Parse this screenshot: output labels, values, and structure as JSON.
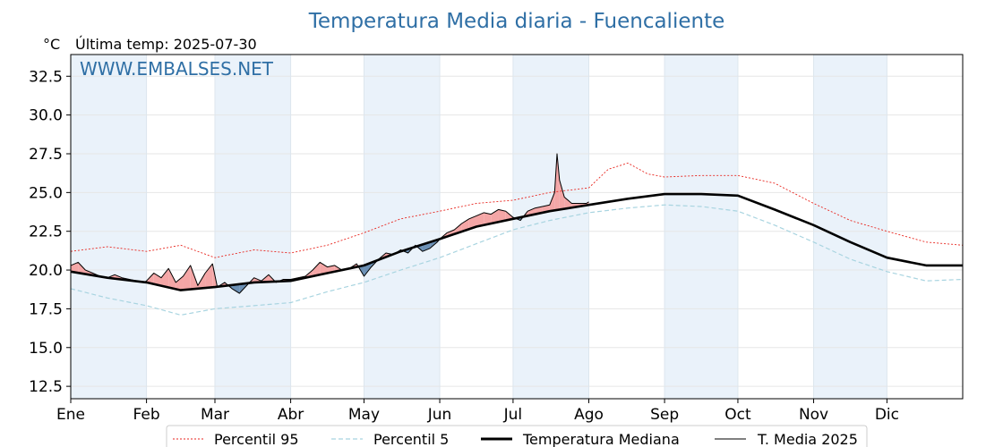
{
  "chart_data": {
    "type": "line",
    "title": "Temperatura Media diaria - Fuencaliente",
    "unit": "°C",
    "last_temp_label": "Última temp: 2025-07-30",
    "watermark": "WWW.EMBALSES.NET",
    "ylim": [
      11.7,
      33.9
    ],
    "y_ticks": [
      12.5,
      15.0,
      17.5,
      20.0,
      22.5,
      25.0,
      27.5,
      30.0,
      32.5
    ],
    "y_tick_labels": [
      "12.5",
      "15.0",
      "17.5",
      "20.0",
      "22.5",
      "25.0",
      "27.5",
      "30.0",
      "32.5"
    ],
    "xlim": [
      0,
      365
    ],
    "x_ticks": [
      0,
      31,
      59,
      90,
      120,
      151,
      181,
      212,
      243,
      273,
      304,
      334
    ],
    "x_tick_labels": [
      "Ene",
      "Feb",
      "Mar",
      "Abr",
      "May",
      "Jun",
      "Jul",
      "Ago",
      "Sep",
      "Oct",
      "Nov",
      "Dic"
    ],
    "grid": true,
    "legend_position": "bottom",
    "colors": {
      "p95": "#e8261f",
      "p5": "#a8d4e0",
      "mediana": "#000000",
      "media2025": "#000000",
      "above": "#f4a6a6",
      "below": "#6b90b5",
      "band": "#eaf2fa",
      "title": "#2f6fa5"
    },
    "series": [
      {
        "name": "Percentil 95",
        "key": "p95",
        "style": "dotted",
        "points": [
          [
            0,
            21.2
          ],
          [
            15,
            21.5
          ],
          [
            31,
            21.2
          ],
          [
            45,
            21.6
          ],
          [
            59,
            20.8
          ],
          [
            75,
            21.3
          ],
          [
            90,
            21.1
          ],
          [
            105,
            21.6
          ],
          [
            120,
            22.4
          ],
          [
            135,
            23.3
          ],
          [
            151,
            23.8
          ],
          [
            166,
            24.3
          ],
          [
            181,
            24.5
          ],
          [
            196,
            25.0
          ],
          [
            212,
            25.3
          ],
          [
            220,
            26.5
          ],
          [
            228,
            26.9
          ],
          [
            236,
            26.2
          ],
          [
            243,
            26.0
          ],
          [
            258,
            26.1
          ],
          [
            273,
            26.1
          ],
          [
            288,
            25.6
          ],
          [
            304,
            24.3
          ],
          [
            319,
            23.2
          ],
          [
            334,
            22.5
          ],
          [
            350,
            21.8
          ],
          [
            365,
            21.6
          ]
        ]
      },
      {
        "name": "Percentil 5",
        "key": "p5",
        "style": "dashed",
        "points": [
          [
            0,
            18.8
          ],
          [
            15,
            18.2
          ],
          [
            31,
            17.7
          ],
          [
            45,
            17.1
          ],
          [
            59,
            17.5
          ],
          [
            75,
            17.7
          ],
          [
            90,
            17.9
          ],
          [
            105,
            18.6
          ],
          [
            120,
            19.2
          ],
          [
            135,
            20.0
          ],
          [
            151,
            20.8
          ],
          [
            166,
            21.7
          ],
          [
            181,
            22.6
          ],
          [
            196,
            23.2
          ],
          [
            212,
            23.7
          ],
          [
            228,
            24.0
          ],
          [
            243,
            24.2
          ],
          [
            258,
            24.1
          ],
          [
            273,
            23.8
          ],
          [
            288,
            22.9
          ],
          [
            304,
            21.8
          ],
          [
            319,
            20.7
          ],
          [
            334,
            19.9
          ],
          [
            350,
            19.3
          ],
          [
            365,
            19.4
          ]
        ]
      },
      {
        "name": "Temperatura Mediana",
        "key": "mediana",
        "style": "solid-thick",
        "points": [
          [
            0,
            19.9
          ],
          [
            15,
            19.5
          ],
          [
            31,
            19.2
          ],
          [
            45,
            18.7
          ],
          [
            59,
            18.9
          ],
          [
            75,
            19.2
          ],
          [
            90,
            19.3
          ],
          [
            105,
            19.8
          ],
          [
            120,
            20.3
          ],
          [
            135,
            21.2
          ],
          [
            151,
            22.0
          ],
          [
            166,
            22.8
          ],
          [
            181,
            23.3
          ],
          [
            196,
            23.8
          ],
          [
            212,
            24.2
          ],
          [
            228,
            24.6
          ],
          [
            243,
            24.9
          ],
          [
            258,
            24.9
          ],
          [
            273,
            24.8
          ],
          [
            288,
            23.9
          ],
          [
            304,
            22.9
          ],
          [
            319,
            21.8
          ],
          [
            334,
            20.8
          ],
          [
            350,
            20.3
          ],
          [
            365,
            20.3
          ]
        ]
      },
      {
        "name": "T. Media 2025",
        "key": "media2025",
        "style": "solid-thin",
        "points": [
          [
            0,
            20.3
          ],
          [
            3,
            20.5
          ],
          [
            6,
            20.0
          ],
          [
            9,
            19.8
          ],
          [
            12,
            19.6
          ],
          [
            15,
            19.5
          ],
          [
            18,
            19.7
          ],
          [
            21,
            19.5
          ],
          [
            24,
            19.4
          ],
          [
            27,
            19.3
          ],
          [
            30,
            19.2
          ],
          [
            31,
            19.3
          ],
          [
            34,
            19.8
          ],
          [
            37,
            19.5
          ],
          [
            40,
            20.1
          ],
          [
            43,
            19.2
          ],
          [
            46,
            19.6
          ],
          [
            49,
            20.3
          ],
          [
            52,
            19.0
          ],
          [
            55,
            19.8
          ],
          [
            58,
            20.4
          ],
          [
            60,
            18.9
          ],
          [
            63,
            19.2
          ],
          [
            66,
            18.8
          ],
          [
            69,
            18.5
          ],
          [
            72,
            19.0
          ],
          [
            75,
            19.5
          ],
          [
            78,
            19.3
          ],
          [
            81,
            19.7
          ],
          [
            84,
            19.2
          ],
          [
            87,
            19.4
          ],
          [
            90,
            19.4
          ],
          [
            93,
            19.5
          ],
          [
            96,
            19.6
          ],
          [
            99,
            20.0
          ],
          [
            102,
            20.5
          ],
          [
            105,
            20.2
          ],
          [
            108,
            20.3
          ],
          [
            111,
            20.0
          ],
          [
            114,
            20.1
          ],
          [
            117,
            20.4
          ],
          [
            120,
            19.6
          ],
          [
            123,
            20.2
          ],
          [
            126,
            20.7
          ],
          [
            129,
            21.1
          ],
          [
            132,
            21.0
          ],
          [
            135,
            21.3
          ],
          [
            138,
            21.1
          ],
          [
            141,
            21.6
          ],
          [
            144,
            21.2
          ],
          [
            147,
            21.4
          ],
          [
            150,
            21.8
          ],
          [
            151,
            22.0
          ],
          [
            154,
            22.4
          ],
          [
            157,
            22.6
          ],
          [
            160,
            23.0
          ],
          [
            163,
            23.3
          ],
          [
            166,
            23.5
          ],
          [
            169,
            23.7
          ],
          [
            172,
            23.6
          ],
          [
            175,
            23.9
          ],
          [
            178,
            23.8
          ],
          [
            181,
            23.4
          ],
          [
            184,
            23.2
          ],
          [
            187,
            23.8
          ],
          [
            190,
            24.0
          ],
          [
            193,
            24.1
          ],
          [
            196,
            24.2
          ],
          [
            198,
            25.0
          ],
          [
            199,
            27.5
          ],
          [
            200,
            25.8
          ],
          [
            202,
            24.7
          ],
          [
            205,
            24.3
          ],
          [
            208,
            24.3
          ],
          [
            211,
            24.3
          ],
          [
            212,
            24.4
          ]
        ]
      }
    ]
  },
  "legend": {
    "items": [
      {
        "label": "Percentil 95"
      },
      {
        "label": "Percentil 5"
      },
      {
        "label": "Temperatura Mediana"
      },
      {
        "label": "T. Media 2025"
      }
    ]
  }
}
